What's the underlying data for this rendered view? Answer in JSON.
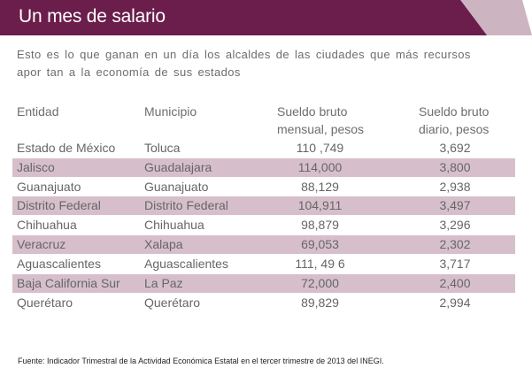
{
  "header": {
    "title": "Un mes de salario"
  },
  "subtitle": "Esto es lo que ganan en un día los alcaldes de las ciudades que más recursos apor tan a la economía de sus estados",
  "table": {
    "columns": {
      "entidad": "Entidad",
      "municipio": "Municipio",
      "mensual_line1": "Sueldo bruto",
      "mensual_line2": "mensual, pesos",
      "diario_line1": "Sueldo bruto",
      "diario_line2": "diario, pesos"
    },
    "rows": [
      {
        "entidad": "Estado de México",
        "municipio": "Toluca",
        "mensual": "110 ,749",
        "diario": "3,692"
      },
      {
        "entidad": "Jalisco",
        "municipio": "Guadalajara",
        "mensual": "114,000",
        "diario": "3,800"
      },
      {
        "entidad": "Guanajuato",
        "municipio": "Guanajuato",
        "mensual": "88,129",
        "diario": "2,938"
      },
      {
        "entidad": "Distrito Federal",
        "municipio": "Distrito Federal",
        "mensual": "104,911",
        "diario": "3,497"
      },
      {
        "entidad": "Chihuahua",
        "municipio": "Chihuahua",
        "mensual": "98,879",
        "diario": "3,296"
      },
      {
        "entidad": "Veracruz",
        "municipio": "Xalapa",
        "mensual": "69,053",
        "diario": "2,302"
      },
      {
        "entidad": "Aguascalientes",
        "municipio": "Aguascalientes",
        "mensual": "111, 49 6",
        "diario": "3,717"
      },
      {
        "entidad": "Baja California Sur",
        "municipio": "La Paz",
        "mensual": "72,000",
        "diario": "2,400"
      },
      {
        "entidad": "Querétaro",
        "municipio": "Querétaro",
        "mensual": "89,829",
        "diario": "2,994"
      }
    ]
  },
  "footer": "Fuente: Indicador Trimestral de la Actividad Económica Estatal en el tercer trimestre de 2013 del INEGI.",
  "colors": {
    "header_bg": "#6b1e4c",
    "row_shade": "#d6bfcb",
    "fold": "#cdb4c1"
  }
}
